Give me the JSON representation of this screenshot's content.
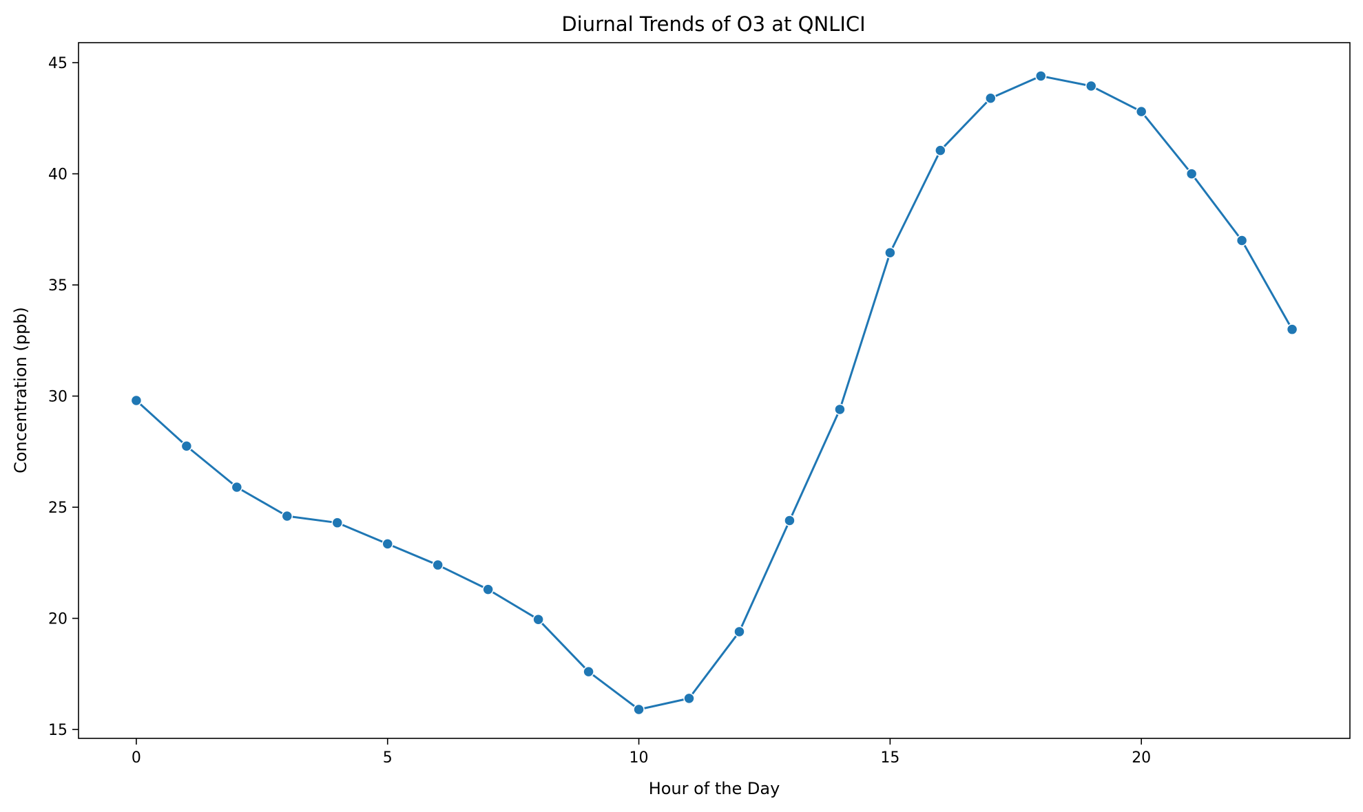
{
  "chart_data": {
    "type": "line",
    "title": "Diurnal Trends of O3 at QNLICI",
    "xlabel": "Hour of the Day",
    "ylabel": "Concentration (ppb)",
    "xlim": [
      -1.15,
      24.15
    ],
    "ylim": [
      14.6,
      45.9
    ],
    "xticks": [
      0,
      5,
      10,
      15,
      20
    ],
    "yticks": [
      15,
      20,
      25,
      30,
      35,
      40,
      45
    ],
    "grid": false,
    "marker": "circle",
    "colors": {
      "line": "#1f77b4",
      "marker_edge": "#ffffff"
    },
    "series": [
      {
        "x": [
          0,
          1,
          2,
          3,
          4,
          5,
          6,
          7,
          8,
          9,
          10,
          11,
          12,
          13,
          14,
          15,
          16,
          17,
          18,
          19,
          20,
          21,
          22,
          23
        ],
        "values": [
          29.8,
          27.75,
          25.9,
          24.6,
          24.3,
          23.35,
          22.4,
          21.3,
          19.95,
          17.6,
          15.9,
          16.4,
          19.4,
          24.4,
          29.4,
          36.45,
          41.05,
          43.4,
          44.4,
          43.95,
          42.8,
          40.0,
          37.0,
          33.0
        ]
      }
    ]
  }
}
